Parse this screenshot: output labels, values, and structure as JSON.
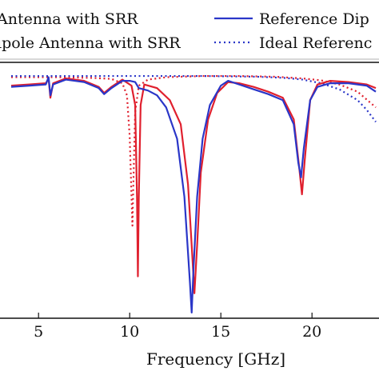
{
  "chart_data": {
    "type": "line",
    "xlabel": "Frequency [GHz]",
    "ylabel": "",
    "xlim": [
      3.5,
      23.5
    ],
    "ylim": [
      -1,
      0.03
    ],
    "x_ticks": [
      5,
      10,
      15,
      20
    ],
    "y_ticks": [],
    "grid": false,
    "legend_position": "top",
    "legend": [
      {
        "label": "Antenna with SRR",
        "color": "#e0202e",
        "style": "solid"
      },
      {
        "label": "Reference Dip",
        "color": "#2a36c8",
        "style": "solid"
      },
      {
        "label": "ipole Antenna with SRR",
        "color": "#e0202e",
        "style": "dotted"
      },
      {
        "label": "Ideal Referenc",
        "color": "#2a36c8",
        "style": "dotted"
      }
    ],
    "series": [
      {
        "name": "Antenna with SRR",
        "color": "#e0202e",
        "style": "solid",
        "points": [
          [
            3.5,
            -0.04
          ],
          [
            4.5,
            -0.035
          ],
          [
            5.4,
            -0.03
          ],
          [
            5.55,
            -0.01
          ],
          [
            5.65,
            -0.09
          ],
          [
            5.8,
            -0.03
          ],
          [
            6.5,
            -0.01
          ],
          [
            7.5,
            -0.02
          ],
          [
            8.3,
            -0.045
          ],
          [
            8.6,
            -0.07
          ],
          [
            9.0,
            -0.045
          ],
          [
            9.6,
            -0.015
          ],
          [
            10.1,
            -0.04
          ],
          [
            10.3,
            -0.12
          ],
          [
            10.4,
            -0.5
          ],
          [
            10.45,
            -0.83
          ],
          [
            10.5,
            -0.5
          ],
          [
            10.6,
            -0.12
          ],
          [
            10.8,
            -0.035
          ],
          [
            11.5,
            -0.05
          ],
          [
            12.2,
            -0.1
          ],
          [
            12.8,
            -0.2
          ],
          [
            13.2,
            -0.45
          ],
          [
            13.4,
            -0.7
          ],
          [
            13.55,
            -0.9
          ],
          [
            13.7,
            -0.7
          ],
          [
            13.9,
            -0.4
          ],
          [
            14.3,
            -0.18
          ],
          [
            14.8,
            -0.07
          ],
          [
            15.4,
            -0.025
          ],
          [
            16.0,
            -0.03
          ],
          [
            16.8,
            -0.045
          ],
          [
            17.6,
            -0.065
          ],
          [
            18.4,
            -0.09
          ],
          [
            19.0,
            -0.18
          ],
          [
            19.3,
            -0.38
          ],
          [
            19.45,
            -0.49
          ],
          [
            19.6,
            -0.35
          ],
          [
            19.9,
            -0.1
          ],
          [
            20.3,
            -0.035
          ],
          [
            21.0,
            -0.02
          ],
          [
            22.0,
            -0.025
          ],
          [
            23.0,
            -0.035
          ],
          [
            23.5,
            -0.05
          ]
        ]
      },
      {
        "name": "Reference Dip",
        "color": "#2a36c8",
        "style": "solid",
        "points": [
          [
            3.5,
            -0.045
          ],
          [
            4.5,
            -0.04
          ],
          [
            5.4,
            -0.035
          ],
          [
            5.55,
            -0.005
          ],
          [
            5.65,
            -0.08
          ],
          [
            5.8,
            -0.035
          ],
          [
            6.5,
            -0.015
          ],
          [
            7.5,
            -0.025
          ],
          [
            8.3,
            -0.05
          ],
          [
            8.6,
            -0.075
          ],
          [
            9.0,
            -0.05
          ],
          [
            9.6,
            -0.02
          ],
          [
            10.0,
            -0.02
          ],
          [
            10.3,
            -0.025
          ],
          [
            10.5,
            -0.05
          ],
          [
            11.0,
            -0.06
          ],
          [
            11.5,
            -0.08
          ],
          [
            12.0,
            -0.13
          ],
          [
            12.6,
            -0.26
          ],
          [
            13.0,
            -0.5
          ],
          [
            13.3,
            -0.85
          ],
          [
            13.4,
            -0.98
          ],
          [
            13.5,
            -0.8
          ],
          [
            13.7,
            -0.5
          ],
          [
            14.0,
            -0.26
          ],
          [
            14.4,
            -0.12
          ],
          [
            15.0,
            -0.04
          ],
          [
            15.4,
            -0.02
          ],
          [
            16.0,
            -0.035
          ],
          [
            16.8,
            -0.055
          ],
          [
            17.6,
            -0.075
          ],
          [
            18.4,
            -0.1
          ],
          [
            19.0,
            -0.2
          ],
          [
            19.25,
            -0.36
          ],
          [
            19.4,
            -0.42
          ],
          [
            19.55,
            -0.3
          ],
          [
            19.9,
            -0.1
          ],
          [
            20.3,
            -0.045
          ],
          [
            21.0,
            -0.03
          ],
          [
            22.0,
            -0.03
          ],
          [
            23.0,
            -0.04
          ],
          [
            23.5,
            -0.065
          ]
        ]
      },
      {
        "name": "ipole Antenna with SRR",
        "color": "#e0202e",
        "style": "dotted",
        "points": [
          [
            3.5,
            -0.005
          ],
          [
            6.0,
            -0.005
          ],
          [
            8.0,
            -0.008
          ],
          [
            9.0,
            -0.012
          ],
          [
            9.6,
            -0.03
          ],
          [
            9.85,
            -0.08
          ],
          [
            10.0,
            -0.25
          ],
          [
            10.1,
            -0.5
          ],
          [
            10.15,
            -0.62
          ],
          [
            10.2,
            -0.45
          ],
          [
            10.3,
            -0.15
          ],
          [
            10.5,
            -0.04
          ],
          [
            11.0,
            -0.015
          ],
          [
            12.0,
            -0.005
          ],
          [
            14.0,
            0.0
          ],
          [
            16.0,
            0.0
          ],
          [
            18.0,
            -0.003
          ],
          [
            19.5,
            -0.01
          ],
          [
            20.5,
            -0.018
          ],
          [
            21.5,
            -0.035
          ],
          [
            22.5,
            -0.065
          ],
          [
            23.5,
            -0.13
          ]
        ]
      },
      {
        "name": "Ideal Referenc",
        "color": "#2a36c8",
        "style": "dotted",
        "points": [
          [
            3.5,
            0.0
          ],
          [
            6.0,
            0.0
          ],
          [
            10.0,
            0.0
          ],
          [
            14.0,
            0.0
          ],
          [
            17.0,
            -0.003
          ],
          [
            18.5,
            -0.008
          ],
          [
            19.5,
            -0.015
          ],
          [
            20.5,
            -0.03
          ],
          [
            21.5,
            -0.055
          ],
          [
            22.5,
            -0.1
          ],
          [
            23.0,
            -0.14
          ],
          [
            23.5,
            -0.19
          ]
        ]
      }
    ]
  }
}
